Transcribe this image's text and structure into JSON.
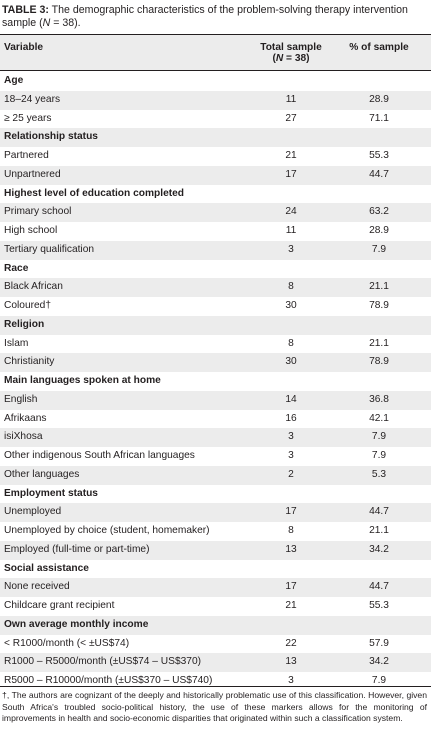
{
  "caption": {
    "label": "TABLE 3:",
    "text_a": " The demographic characteristics of the problem-solving therapy intervention sample (",
    "n_symbol": "N",
    "text_b": " = 38)."
  },
  "header": {
    "variable": "Variable",
    "total_line1": "Total sample",
    "total_line2_a": "(",
    "total_line2_n": "N",
    "total_line2_b": " = 38)",
    "percent": "% of sample"
  },
  "rows": [
    {
      "variable": "Age",
      "total": "",
      "percent": "",
      "section": true
    },
    {
      "variable": "18–24 years",
      "total": "11",
      "percent": "28.9"
    },
    {
      "variable": "≥ 25 years",
      "total": "27",
      "percent": "71.1"
    },
    {
      "variable": "Relationship status",
      "total": "",
      "percent": "",
      "section": true
    },
    {
      "variable": "Partnered",
      "total": "21",
      "percent": "55.3"
    },
    {
      "variable": "Unpartnered",
      "total": "17",
      "percent": "44.7"
    },
    {
      "variable": "Highest level of education completed",
      "total": "",
      "percent": "",
      "section": true
    },
    {
      "variable": "Primary school",
      "total": "24",
      "percent": "63.2"
    },
    {
      "variable": "High school",
      "total": "11",
      "percent": "28.9"
    },
    {
      "variable": "Tertiary qualification",
      "total": "3",
      "percent": "7.9"
    },
    {
      "variable": "Race",
      "total": "",
      "percent": "",
      "section": true
    },
    {
      "variable": "Black African",
      "total": "8",
      "percent": "21.1"
    },
    {
      "variable": "Coloured†",
      "total": "30",
      "percent": "78.9"
    },
    {
      "variable": "Religion",
      "total": "",
      "percent": "",
      "section": true
    },
    {
      "variable": "Islam",
      "total": "8",
      "percent": "21.1"
    },
    {
      "variable": "Christianity",
      "total": "30",
      "percent": "78.9"
    },
    {
      "variable": "Main languages spoken at home",
      "total": "",
      "percent": "",
      "section": true
    },
    {
      "variable": "English",
      "total": "14",
      "percent": "36.8"
    },
    {
      "variable": "Afrikaans",
      "total": "16",
      "percent": "42.1"
    },
    {
      "variable": "isiXhosa",
      "total": "3",
      "percent": "7.9"
    },
    {
      "variable": "Other indigenous South African languages",
      "total": "3",
      "percent": "7.9"
    },
    {
      "variable": "Other languages",
      "total": "2",
      "percent": "5.3"
    },
    {
      "variable": "Employment status",
      "total": "",
      "percent": "",
      "section": true
    },
    {
      "variable": "Unemployed",
      "total": "17",
      "percent": "44.7"
    },
    {
      "variable": "Unemployed by choice (student, homemaker)",
      "total": "8",
      "percent": "21.1"
    },
    {
      "variable": "Employed (full-time or part-time)",
      "total": "13",
      "percent": "34.2"
    },
    {
      "variable": "Social assistance",
      "total": "",
      "percent": "",
      "section": true
    },
    {
      "variable": "None received",
      "total": "17",
      "percent": "44.7"
    },
    {
      "variable": "Childcare grant recipient",
      "total": "21",
      "percent": "55.3"
    },
    {
      "variable": "Own average monthly income",
      "total": "",
      "percent": "",
      "section": true
    },
    {
      "variable": "< R1000/month (< ±US$74)",
      "total": "22",
      "percent": "57.9"
    },
    {
      "variable": "R1000 – R5000/month (±US$74 – US$370)",
      "total": "13",
      "percent": "34.2"
    },
    {
      "variable": "R5000 – R10000/month (±US$370 – US$740)",
      "total": "3",
      "percent": "7.9"
    }
  ],
  "footnote": "†, The authors are cognizant of the deeply and historically problematic use of this classification. However, given South Africa's troubled socio-political history, the use of these markers allows for the monitoring of improvements in health and socio-economic disparities that originated within such a classification system."
}
